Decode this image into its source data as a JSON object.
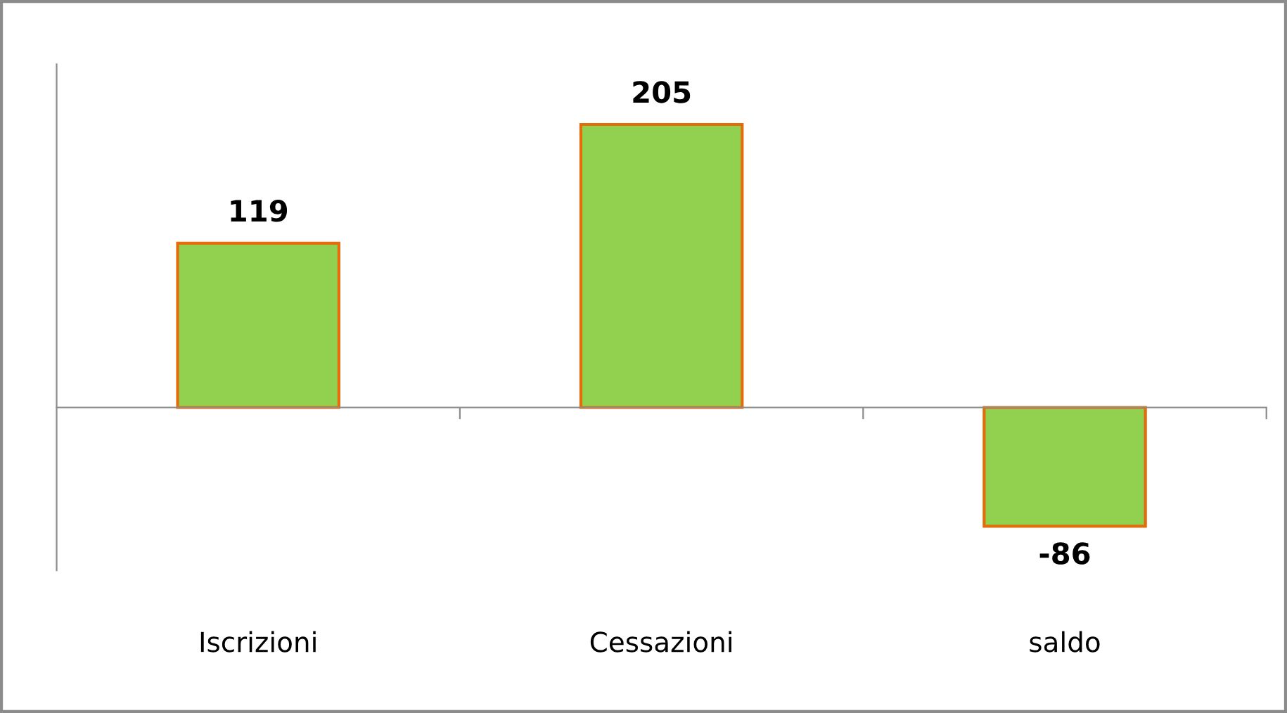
{
  "chart_data": {
    "type": "bar",
    "categories": [
      "Iscrizioni",
      "Cessazioni",
      "saldo"
    ],
    "values": [
      119,
      205,
      -86
    ],
    "color": "#92d050",
    "data_labels": true,
    "grid": false,
    "legend": false
  }
}
